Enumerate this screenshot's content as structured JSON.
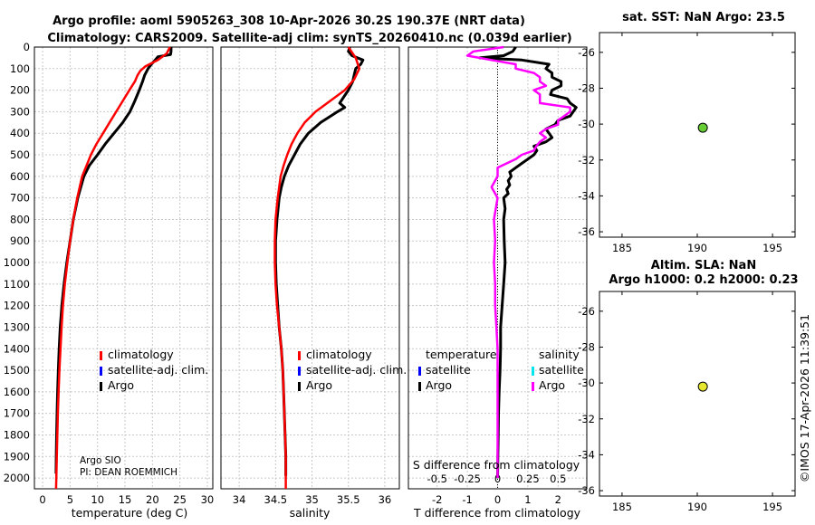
{
  "title_line1": "Argo profile: aoml 5905263_308 10-Apr-2026 30.2S 190.37E (NRT data)",
  "title_line2": "Climatology: CARS2009. Satellite-adj clim: synTS_20260410.nc (0.039d earlier)",
  "sst_title": "sat. SST: NaN Argo: 23.5",
  "sla_title1": "Altim. SLA: NaN",
  "sla_title2": "Argo h1000: 0.2 h2000: 0.23",
  "credit": "©IMOS 17-Apr-2026 11:39:51",
  "float_info": {
    "line1": "Argo SIO",
    "line2": "PI: DEAN ROEMMICH"
  },
  "colors": {
    "climatology": "#ff0000",
    "satellite": "#0000ff",
    "argo": "#000000",
    "salinity_diff": "#ff00ff",
    "salinity_sat": "#00e5ee",
    "sst_marker": "#66cc33",
    "sla_marker": "#e6e62e",
    "grid": "#c8c8c8"
  },
  "chart_data": [
    {
      "type": "line",
      "panel": "temperature",
      "xlabel": "temperature (deg C)",
      "ylabel": "",
      "xlim": [
        -1.5,
        31
      ],
      "ylim": [
        2050,
        0
      ],
      "xticks": [
        0,
        5,
        10,
        15,
        20,
        25,
        30
      ],
      "yticks": [
        0,
        100,
        200,
        300,
        400,
        500,
        600,
        700,
        800,
        900,
        1000,
        1100,
        1200,
        1300,
        1400,
        1500,
        1600,
        1700,
        1800,
        1900,
        2000
      ],
      "legend": [
        "climatology",
        "satellite-adj. clim.",
        "Argo"
      ],
      "series": [
        {
          "name": "climatology",
          "color": "#ff0000",
          "depth": [
            0,
            30,
            60,
            90,
            110,
            130,
            160,
            200,
            250,
            300,
            350,
            400,
            450,
            500,
            550,
            600,
            700,
            800,
            900,
            1000,
            1100,
            1200,
            1300,
            1400,
            1500,
            1600,
            1700,
            1800,
            1900,
            2000,
            2050
          ],
          "values": [
            23.2,
            22.6,
            21.0,
            18.7,
            17.8,
            17.3,
            16.8,
            15.8,
            14.6,
            13.4,
            12.2,
            11.0,
            9.8,
            8.8,
            8.0,
            7.2,
            6.3,
            5.6,
            5.0,
            4.5,
            4.05,
            3.7,
            3.45,
            3.25,
            3.05,
            2.9,
            2.78,
            2.68,
            2.58,
            2.5,
            2.45
          ]
        },
        {
          "name": "Argo",
          "color": "#000000",
          "depth": [
            0,
            20,
            35,
            45,
            60,
            80,
            100,
            130,
            160,
            200,
            250,
            300,
            350,
            400,
            450,
            500,
            550,
            600,
            700,
            800,
            900,
            1000,
            1100,
            1200,
            1300,
            1400,
            1500,
            1600,
            1700,
            1800,
            1900,
            1980
          ],
          "values": [
            23.4,
            23.4,
            23.3,
            21.0,
            20.5,
            19.8,
            19.2,
            18.6,
            18.2,
            17.6,
            16.8,
            15.9,
            14.6,
            13.0,
            11.4,
            10.0,
            8.5,
            7.5,
            6.4,
            5.6,
            5.0,
            4.4,
            3.9,
            3.5,
            3.2,
            3.0,
            2.85,
            2.72,
            2.62,
            2.55,
            2.48,
            2.45
          ]
        }
      ]
    },
    {
      "type": "line",
      "panel": "salinity",
      "xlabel": "salinity",
      "xlim": [
        33.75,
        36.2
      ],
      "ylim": [
        2050,
        0
      ],
      "xticks": [
        34,
        34.5,
        35,
        35.5,
        36
      ],
      "xticklabels": [
        "34",
        "34.5",
        "35",
        "35.5",
        "36"
      ],
      "legend": [
        "climatology",
        "satellite-adj. clim.",
        "Argo"
      ],
      "series": [
        {
          "name": "climatology",
          "color": "#ff0000",
          "depth": [
            0,
            50,
            100,
            150,
            200,
            250,
            300,
            350,
            400,
            450,
            500,
            550,
            600,
            650,
            700,
            800,
            900,
            1000,
            1100,
            1200,
            1300,
            1400,
            1500,
            1600,
            1700,
            1800,
            1900,
            2000,
            2050
          ],
          "values": [
            35.5,
            35.6,
            35.65,
            35.58,
            35.45,
            35.25,
            35.05,
            34.9,
            34.8,
            34.72,
            34.66,
            34.61,
            34.57,
            34.55,
            34.53,
            34.5,
            34.49,
            34.49,
            34.5,
            34.52,
            34.55,
            34.58,
            34.6,
            34.61,
            34.62,
            34.63,
            34.64,
            34.64,
            34.64
          ]
        },
        {
          "name": "Argo",
          "color": "#000000",
          "depth": [
            0,
            20,
            40,
            60,
            80,
            100,
            130,
            160,
            200,
            240,
            260,
            280,
            300,
            350,
            400,
            450,
            500,
            550,
            600,
            650,
            700,
            800,
            900,
            1000,
            1100,
            1200,
            1300,
            1400,
            1500,
            1600,
            1700,
            1800,
            1900,
            1990
          ],
          "values": [
            35.52,
            35.5,
            35.55,
            35.7,
            35.67,
            35.6,
            35.58,
            35.56,
            35.5,
            35.42,
            35.38,
            35.45,
            35.35,
            35.12,
            34.95,
            34.84,
            34.76,
            34.68,
            34.62,
            34.58,
            34.55,
            34.52,
            34.5,
            34.5,
            34.51,
            34.53,
            34.55,
            34.58,
            34.6,
            34.61,
            34.62,
            34.63,
            34.64,
            34.64
          ]
        }
      ]
    },
    {
      "type": "line",
      "panel": "difference",
      "xlabel": "T difference from climatology",
      "xlabel2": "S difference from climatology",
      "xlim": [
        -2.95,
        2.95
      ],
      "ylim": [
        2050,
        0
      ],
      "xticks": [
        -2,
        -1,
        0,
        1,
        2
      ],
      "xticklabels": [
        "-2",
        "-1",
        "0",
        "1",
        "2"
      ],
      "s_xticklabels": [
        "-0.5",
        "-0.25",
        "0",
        "0.25",
        "0.5"
      ],
      "legend_headers": [
        "temperature",
        "salinity"
      ],
      "legend_temperature": [
        "satellite",
        "Argo"
      ],
      "legend_salinity": [
        "satellite",
        "Argo"
      ],
      "series": [
        {
          "name": "T difference (Argo)",
          "color": "#000000",
          "depth": [
            0,
            20,
            40,
            50,
            60,
            80,
            100,
            120,
            140,
            160,
            180,
            200,
            220,
            240,
            260,
            280,
            300,
            320,
            340,
            360,
            380,
            400,
            420,
            440,
            460,
            480,
            500,
            520,
            540,
            560,
            580,
            600,
            620,
            640,
            660,
            680,
            700,
            750,
            800,
            900,
            1000,
            1100,
            1200,
            1300,
            1400,
            1500,
            1600,
            1700,
            1800,
            1900,
            2000
          ],
          "values": [
            0.6,
            0.5,
            0.2,
            -0.6,
            0.8,
            1.7,
            1.6,
            1.8,
            1.8,
            2.1,
            2.1,
            1.8,
            1.75,
            2.3,
            2.4,
            2.6,
            2.5,
            2.4,
            2.0,
            1.9,
            1.6,
            1.7,
            1.8,
            1.6,
            1.2,
            1.3,
            1.2,
            1.0,
            0.8,
            0.6,
            0.4,
            0.45,
            0.35,
            0.4,
            0.3,
            0.35,
            0.2,
            0.25,
            0.2,
            0.22,
            0.25,
            0.2,
            0.15,
            0.1,
            0.1,
            0.08,
            0.05,
            0.03,
            0.02,
            0.01,
            0.0
          ]
        },
        {
          "name": "S difference (Argo)",
          "color": "#ff00ff",
          "depth": [
            0,
            20,
            40,
            60,
            80,
            100,
            120,
            140,
            160,
            180,
            200,
            220,
            240,
            260,
            280,
            300,
            320,
            340,
            360,
            380,
            400,
            420,
            440,
            460,
            480,
            500,
            520,
            560,
            600,
            650,
            700,
            800,
            900,
            1000,
            1100,
            1200,
            1300,
            1400,
            1500,
            1600,
            1700,
            1800,
            1900,
            2000
          ],
          "values": [
            0.05,
            -0.2,
            -0.25,
            -0.05,
            0.15,
            0.15,
            0.3,
            0.35,
            0.35,
            0.4,
            0.3,
            0.35,
            0.35,
            0.35,
            0.6,
            0.6,
            0.55,
            0.5,
            0.5,
            0.4,
            0.35,
            0.4,
            0.35,
            0.32,
            0.3,
            0.2,
            0.15,
            0.0,
            0.0,
            -0.05,
            0.0,
            -0.03,
            -0.02,
            -0.03,
            -0.02,
            -0.02,
            -0.01,
            0.0,
            0.0,
            0.0,
            0.0,
            0.0,
            0.0,
            0.0
          ]
        }
      ]
    },
    {
      "type": "scatter",
      "panel": "sst-map",
      "title": "sat. SST: NaN Argo: 23.5",
      "xlim": [
        183.5,
        196.5
      ],
      "ylim": [
        -36.3,
        -24.9
      ],
      "xticks": [
        185,
        190,
        195
      ],
      "yticks": [
        -26,
        -28,
        -30,
        -32,
        -34,
        -36
      ],
      "points": [
        {
          "x": 190.37,
          "y": -30.2,
          "color": "#66cc33"
        }
      ]
    },
    {
      "type": "scatter",
      "panel": "sla-map",
      "title": "Altim. SLA: NaN / Argo h1000: 0.2 h2000: 0.23",
      "xlim": [
        183.5,
        196.5
      ],
      "ylim": [
        -36.3,
        -24.9
      ],
      "xticks": [
        185,
        190,
        195
      ],
      "yticks": [
        -26,
        -28,
        -30,
        -32,
        -34,
        -36
      ],
      "points": [
        {
          "x": 190.37,
          "y": -30.2,
          "color": "#e6e62e"
        }
      ]
    }
  ]
}
